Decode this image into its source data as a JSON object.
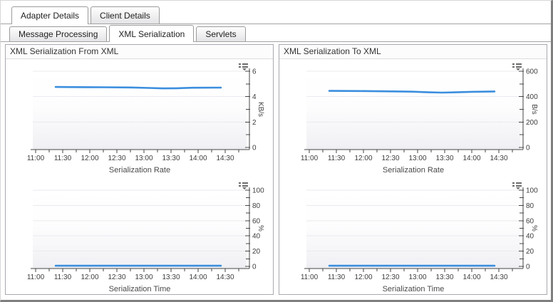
{
  "tabs_primary": [
    {
      "label": "Adapter Details",
      "active": true
    },
    {
      "label": "Client Details",
      "active": false
    }
  ],
  "tabs_secondary": [
    {
      "label": "Message Processing",
      "active": false
    },
    {
      "label": "XML Serialization",
      "active": true
    },
    {
      "label": "Servlets",
      "active": false
    }
  ],
  "panels": [
    {
      "title": "XML Serialization From XML"
    },
    {
      "title": "XML Serialization To XML"
    }
  ],
  "icons": {
    "chart_options": "legend-dropdown-icon"
  },
  "colors": {
    "series_line": "#3b8ede",
    "axis": "#454545",
    "tick_label": "#3d3d3d",
    "grid": "#ebebf0",
    "panel_border": "#a8a8b0",
    "tab_border": "#9b9b9b",
    "outer_border_dark": "#7f7f7f"
  },
  "chart_data": [
    {
      "type": "line",
      "panel": "XML Serialization From XML",
      "title": "Serialization Rate",
      "y_unit": "KB/s",
      "ylim": [
        0,
        6
      ],
      "x_ticks": [
        {
          "v": 11.0,
          "l": "11:00"
        },
        {
          "v": 11.25,
          "l": ""
        },
        {
          "v": 11.5,
          "l": "11:30"
        },
        {
          "v": 11.75,
          "l": ""
        },
        {
          "v": 12.0,
          "l": "12:00"
        },
        {
          "v": 12.25,
          "l": ""
        },
        {
          "v": 12.5,
          "l": "12:30"
        },
        {
          "v": 12.75,
          "l": ""
        },
        {
          "v": 13.0,
          "l": "13:00"
        },
        {
          "v": 13.25,
          "l": ""
        },
        {
          "v": 13.5,
          "l": "13:30"
        },
        {
          "v": 13.75,
          "l": ""
        },
        {
          "v": 14.0,
          "l": "14:00"
        },
        {
          "v": 14.25,
          "l": ""
        },
        {
          "v": 14.5,
          "l": "14:30"
        },
        {
          "v": 14.75,
          "l": ""
        }
      ],
      "y_ticks": [
        {
          "v": 0,
          "l": "0"
        },
        {
          "v": 1,
          "l": ""
        },
        {
          "v": 2,
          "l": "2"
        },
        {
          "v": 3,
          "l": ""
        },
        {
          "v": 4,
          "l": "4"
        },
        {
          "v": 5,
          "l": ""
        },
        {
          "v": 6,
          "l": "6"
        }
      ],
      "series": [
        {
          "name": "serialization-rate-from-xml",
          "color": "#3b8ede",
          "points": [
            [
              11.37,
              4.76
            ],
            [
              11.75,
              4.75
            ],
            [
              12.25,
              4.74
            ],
            [
              12.75,
              4.72
            ],
            [
              13.1,
              4.68
            ],
            [
              13.35,
              4.65
            ],
            [
              13.6,
              4.66
            ],
            [
              13.9,
              4.7
            ],
            [
              14.42,
              4.71
            ]
          ]
        }
      ]
    },
    {
      "type": "line",
      "panel": "XML Serialization From XML",
      "title": "Serialization Time",
      "y_unit": "%",
      "ylim": [
        0,
        100
      ],
      "x_ticks": [
        {
          "v": 11.0,
          "l": "11:00"
        },
        {
          "v": 11.25,
          "l": ""
        },
        {
          "v": 11.5,
          "l": "11:30"
        },
        {
          "v": 11.75,
          "l": ""
        },
        {
          "v": 12.0,
          "l": "12:00"
        },
        {
          "v": 12.25,
          "l": ""
        },
        {
          "v": 12.5,
          "l": "12:30"
        },
        {
          "v": 12.75,
          "l": ""
        },
        {
          "v": 13.0,
          "l": "13:00"
        },
        {
          "v": 13.25,
          "l": ""
        },
        {
          "v": 13.5,
          "l": "13:30"
        },
        {
          "v": 13.75,
          "l": ""
        },
        {
          "v": 14.0,
          "l": "14:00"
        },
        {
          "v": 14.25,
          "l": ""
        },
        {
          "v": 14.5,
          "l": "14:30"
        },
        {
          "v": 14.75,
          "l": ""
        }
      ],
      "y_ticks": [
        {
          "v": 0,
          "l": "0"
        },
        {
          "v": 10,
          "l": ""
        },
        {
          "v": 20,
          "l": "20"
        },
        {
          "v": 30,
          "l": ""
        },
        {
          "v": 40,
          "l": "40"
        },
        {
          "v": 50,
          "l": ""
        },
        {
          "v": 60,
          "l": "60"
        },
        {
          "v": 70,
          "l": ""
        },
        {
          "v": 80,
          "l": "80"
        },
        {
          "v": 90,
          "l": ""
        },
        {
          "v": 100,
          "l": "100"
        }
      ],
      "series": [
        {
          "name": "serialization-time-from-xml",
          "color": "#3b8ede",
          "points": [
            [
              11.37,
              0.8
            ],
            [
              12.0,
              0.8
            ],
            [
              12.75,
              0.8
            ],
            [
              13.5,
              0.8
            ],
            [
              14.42,
              0.8
            ]
          ]
        }
      ]
    },
    {
      "type": "line",
      "panel": "XML Serialization To XML",
      "title": "Serialization Rate",
      "y_unit": "B/s",
      "ylim": [
        0,
        600
      ],
      "x_ticks": [
        {
          "v": 11.0,
          "l": "11:00"
        },
        {
          "v": 11.25,
          "l": ""
        },
        {
          "v": 11.5,
          "l": "11:30"
        },
        {
          "v": 11.75,
          "l": ""
        },
        {
          "v": 12.0,
          "l": "12:00"
        },
        {
          "v": 12.25,
          "l": ""
        },
        {
          "v": 12.5,
          "l": "12:30"
        },
        {
          "v": 12.75,
          "l": ""
        },
        {
          "v": 13.0,
          "l": "13:00"
        },
        {
          "v": 13.25,
          "l": ""
        },
        {
          "v": 13.5,
          "l": "13:30"
        },
        {
          "v": 13.75,
          "l": ""
        },
        {
          "v": 14.0,
          "l": "14:00"
        },
        {
          "v": 14.25,
          "l": ""
        },
        {
          "v": 14.5,
          "l": "14:30"
        },
        {
          "v": 14.75,
          "l": ""
        }
      ],
      "y_ticks": [
        {
          "v": 0,
          "l": "0"
        },
        {
          "v": 100,
          "l": ""
        },
        {
          "v": 200,
          "l": "200"
        },
        {
          "v": 300,
          "l": ""
        },
        {
          "v": 400,
          "l": "400"
        },
        {
          "v": 500,
          "l": ""
        },
        {
          "v": 600,
          "l": "600"
        }
      ],
      "series": [
        {
          "name": "serialization-rate-to-xml",
          "color": "#3b8ede",
          "points": [
            [
              11.37,
              445
            ],
            [
              11.9,
              444
            ],
            [
              12.4,
              442
            ],
            [
              12.9,
              439
            ],
            [
              13.2,
              434
            ],
            [
              13.45,
              432
            ],
            [
              13.7,
              434
            ],
            [
              14.0,
              438
            ],
            [
              14.42,
              441
            ]
          ]
        }
      ]
    },
    {
      "type": "line",
      "panel": "XML Serialization To XML",
      "title": "Serialization Time",
      "y_unit": "%",
      "ylim": [
        0,
        100
      ],
      "x_ticks": [
        {
          "v": 11.0,
          "l": "11:00"
        },
        {
          "v": 11.25,
          "l": ""
        },
        {
          "v": 11.5,
          "l": "11:30"
        },
        {
          "v": 11.75,
          "l": ""
        },
        {
          "v": 12.0,
          "l": "12:00"
        },
        {
          "v": 12.25,
          "l": ""
        },
        {
          "v": 12.5,
          "l": "12:30"
        },
        {
          "v": 12.75,
          "l": ""
        },
        {
          "v": 13.0,
          "l": "13:00"
        },
        {
          "v": 13.25,
          "l": ""
        },
        {
          "v": 13.5,
          "l": "13:30"
        },
        {
          "v": 13.75,
          "l": ""
        },
        {
          "v": 14.0,
          "l": "14:00"
        },
        {
          "v": 14.25,
          "l": ""
        },
        {
          "v": 14.5,
          "l": "14:30"
        },
        {
          "v": 14.75,
          "l": ""
        }
      ],
      "y_ticks": [
        {
          "v": 0,
          "l": "0"
        },
        {
          "v": 10,
          "l": ""
        },
        {
          "v": 20,
          "l": "20"
        },
        {
          "v": 30,
          "l": ""
        },
        {
          "v": 40,
          "l": "40"
        },
        {
          "v": 50,
          "l": ""
        },
        {
          "v": 60,
          "l": "60"
        },
        {
          "v": 70,
          "l": ""
        },
        {
          "v": 80,
          "l": "80"
        },
        {
          "v": 90,
          "l": ""
        },
        {
          "v": 100,
          "l": "100"
        }
      ],
      "series": [
        {
          "name": "serialization-time-to-xml",
          "color": "#3b8ede",
          "points": [
            [
              11.37,
              0.8
            ],
            [
              12.0,
              0.8
            ],
            [
              12.75,
              0.8
            ],
            [
              13.5,
              0.8
            ],
            [
              14.42,
              0.8
            ]
          ]
        }
      ]
    }
  ]
}
